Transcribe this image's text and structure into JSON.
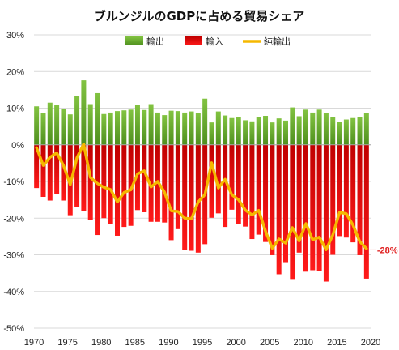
{
  "chart_data": {
    "type": "bar",
    "title": "ブルンジルのGDPに占める貿易シェア",
    "ylim": [
      -50,
      30
    ],
    "yticks": [
      -50,
      -40,
      -30,
      -20,
      -10,
      0,
      10,
      20,
      30
    ],
    "ytick_labels": [
      "-50%",
      "-40%",
      "-30%",
      "-20%",
      "-10%",
      "0%",
      "10%",
      "20%",
      "30%"
    ],
    "xticks": [
      1970,
      1975,
      1980,
      1985,
      1990,
      1995,
      2000,
      2005,
      2010,
      2015,
      2020
    ],
    "xtick_labels": [
      "1970",
      "1975",
      "1980",
      "1985",
      "1990",
      "1995",
      "2000",
      "2005",
      "2010",
      "2015",
      "2020"
    ],
    "x": [
      1970,
      1971,
      1972,
      1973,
      1974,
      1975,
      1976,
      1977,
      1978,
      1979,
      1980,
      1981,
      1982,
      1983,
      1984,
      1985,
      1986,
      1987,
      1988,
      1989,
      1990,
      1991,
      1992,
      1993,
      1994,
      1995,
      1996,
      1997,
      1998,
      1999,
      2000,
      2001,
      2002,
      2003,
      2004,
      2005,
      2006,
      2007,
      2008,
      2009,
      2010,
      2011,
      2012,
      2013,
      2014,
      2015,
      2016,
      2017,
      2018,
      2019
    ],
    "grid": true,
    "legend_position": "top",
    "series": [
      {
        "name": "輸出",
        "kind": "bar",
        "color": "#6aad30",
        "values": [
          10.5,
          8.6,
          11.5,
          10.8,
          9.8,
          8.3,
          13.4,
          17.6,
          11.1,
          14.1,
          8.4,
          8.8,
          9.2,
          9.4,
          9.6,
          10.9,
          9.5,
          11.1,
          8.8,
          8.1,
          9.3,
          9.2,
          8.8,
          9.1,
          8.6,
          12.6,
          6.1,
          9.1,
          8.0,
          7.3,
          7.5,
          6.7,
          6.4,
          7.6,
          7.9,
          6.1,
          7.2,
          6.6,
          10.2,
          7.8,
          9.6,
          8.8,
          9.6,
          8.6,
          7.6,
          6.2,
          6.9,
          7.3,
          7.6,
          8.7
        ]
      },
      {
        "name": "輸入",
        "kind": "bar",
        "color": "#e01010",
        "values": [
          -11.8,
          -14.2,
          -15.2,
          -13.4,
          -15.2,
          -19.2,
          -16.9,
          -18.1,
          -20.6,
          -24.6,
          -20.0,
          -21.6,
          -24.8,
          -22.4,
          -22.1,
          -17.8,
          -18.4,
          -21.0,
          -21.0,
          -21.2,
          -26.0,
          -23.0,
          -28.6,
          -28.9,
          -29.4,
          -27.1,
          -19.9,
          -18.7,
          -22.4,
          -17.7,
          -21.5,
          -22.3,
          -25.7,
          -24.5,
          -26.5,
          -30.1,
          -35.3,
          -32.0,
          -36.6,
          -29.4,
          -34.6,
          -34.2,
          -34.5,
          -37.3,
          -30.0,
          -24.9,
          -25.3,
          -26.6,
          -30.1,
          -36.5
        ]
      },
      {
        "name": "純輸出",
        "kind": "line",
        "color": "#f5b800",
        "values": [
          -0.8,
          -5.6,
          -3.4,
          -2.2,
          -5.6,
          -10.9,
          -3.5,
          0.2,
          -8.9,
          -10.5,
          -11.6,
          -12.2,
          -15.6,
          -13.0,
          -12.3,
          -7.9,
          -7.1,
          -11.5,
          -10.0,
          -12.9,
          -18.0,
          -18.2,
          -20.0,
          -20.2,
          -15.6,
          -13.6,
          -4.9,
          -11.8,
          -9.4,
          -13.6,
          -15.0,
          -17.8,
          -19.1,
          -17.9,
          -23.5,
          -28.2,
          -25.7,
          -26.8,
          -22.6,
          -26.2,
          -21.5,
          -25.9,
          -25.2,
          -28.6,
          -24.6,
          -18.4,
          -18.8,
          -21.9,
          -26.4,
          -28.3
        ]
      }
    ],
    "annotations": [
      {
        "text": "-28%",
        "x": 2019,
        "y": -28,
        "color": "#e02020"
      }
    ]
  }
}
